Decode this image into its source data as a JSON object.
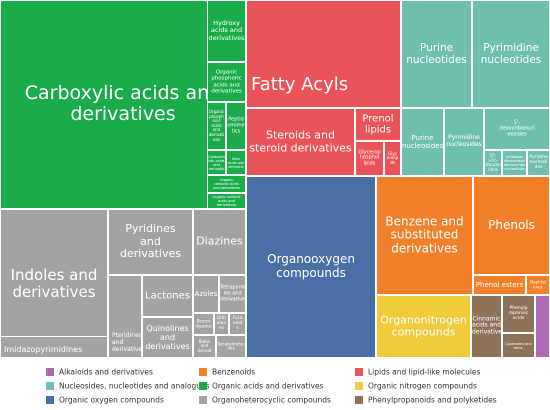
{
  "chart_data": {
    "type": "treemap",
    "groups": [
      {
        "name": "Alkaloids and derivatives",
        "color": "#b06ab3"
      },
      {
        "name": "Benzenoids",
        "color": "#f2802a"
      },
      {
        "name": "Lipids and lipid-like molecules",
        "color": "#e9545a"
      },
      {
        "name": "Nucleosides, nucleotides  and analogues",
        "color": "#6fbfae"
      },
      {
        "name": "Organic acids and derivatives",
        "color": "#1aab4a"
      },
      {
        "name": "Organic nitrogen compounds",
        "color": "#f0cb3c"
      },
      {
        "name": "Organic oxygen compounds",
        "color": "#4a6fa5"
      },
      {
        "name": "Organoheterocyclic compounds",
        "color": "#a3a3a3"
      },
      {
        "name": "Phenylpropanoids and polyketides",
        "color": "#8e735a"
      }
    ],
    "tiles": [
      {
        "label": "Carboxylic acids and\nderivatives",
        "group": 4
      },
      {
        "label": "Hydroxy\nacids and\nderivatives",
        "group": 4
      },
      {
        "label": "Organic\nphosphoric\nacids and\nderivatives",
        "group": 4
      },
      {
        "label": "Organic\nphosph\nonic\nacids and\nderivati\nves",
        "group": 4
      },
      {
        "label": "Peptid\nomime\ntics",
        "group": 4
      },
      {
        "label": "Carboxim\nidic acids\nand\nderivativ",
        "group": 4
      },
      {
        "label": "Keto\nacids and\nderivativ",
        "group": 4
      },
      {
        "label": "Organic\ncarbonic acids\nand derivatives",
        "group": 4
      },
      {
        "label": "Organic sulfonic\nacids and\nderivatives",
        "group": 4
      },
      {
        "label": "Fatty Acyls",
        "group": 2
      },
      {
        "label": "Steroids and\nsteroid derivatives",
        "group": 2
      },
      {
        "label": "Prenol\nlipids",
        "group": 2
      },
      {
        "label": "Glycerop\nhosphol\nipids",
        "group": 2
      },
      {
        "label": "Glyc\nerolip\nids",
        "group": 2
      },
      {
        "label": "Purine\nnucleotides",
        "group": 3
      },
      {
        "label": "Pyrimidine\nnucleotides",
        "group": 3
      },
      {
        "label": "Purine\nnucleosides",
        "group": 3
      },
      {
        "label": "Pyrimidine\nnucleosides",
        "group": 3
      },
      {
        "label": "5'-\ndeoxyribonucl\neosides",
        "group": 3
      },
      {
        "label": "(5'->5')-\ndinucleo\ntides",
        "group": 3
      },
      {
        "label": "Imidazole\nribonucleosi\ndes and ribo\nnucleotides",
        "group": 3
      },
      {
        "label": "Pyridine\nnucleoti\ndes",
        "group": 3
      },
      {
        "label": "Indoles and\nderivatives",
        "group": 7
      },
      {
        "label": "Imidazopyrimidines",
        "group": 7
      },
      {
        "label": "Pyridines\nand\nderivatives",
        "group": 7
      },
      {
        "label": "Diazines",
        "group": 7
      },
      {
        "label": "Pteridines\nand\nderivatives",
        "group": 7
      },
      {
        "label": "Lactones",
        "group": 7
      },
      {
        "label": "Quinolines\nand\nderivatives",
        "group": 7
      },
      {
        "label": "Azoles",
        "group": 7
      },
      {
        "label": "Tetrapyrro\nles and\nderivatives",
        "group": 7
      },
      {
        "label": "Benzot\ndiazoles",
        "group": 7
      },
      {
        "label": "Dith\nolan\nes",
        "group": 7
      },
      {
        "label": "Fura\nnoid\ns",
        "group": 7
      },
      {
        "label": "Biotin\nand\nderivat",
        "group": 7
      },
      {
        "label": "Tetrahydrofura\nnes",
        "group": 7
      },
      {
        "label": "Organooxygen\ncompounds",
        "group": 6
      },
      {
        "label": "Benzene and\nsubstituted\nderivatives",
        "group": 1
      },
      {
        "label": "Phenols",
        "group": 1
      },
      {
        "label": "Phenol esters",
        "group": 1
      },
      {
        "label": "Naphtal\nenes",
        "group": 1
      },
      {
        "label": "Organonitrogen\ncompounds",
        "group": 5
      },
      {
        "label": "Cinnamic\nacids and\nderivatives",
        "group": 8
      },
      {
        "label": "Phenylp\nropanoic\nacids",
        "group": 8
      },
      {
        "label": "Coumarins and\nderiv.",
        "group": 8
      },
      {
        "label": "",
        "group": 0
      }
    ]
  }
}
